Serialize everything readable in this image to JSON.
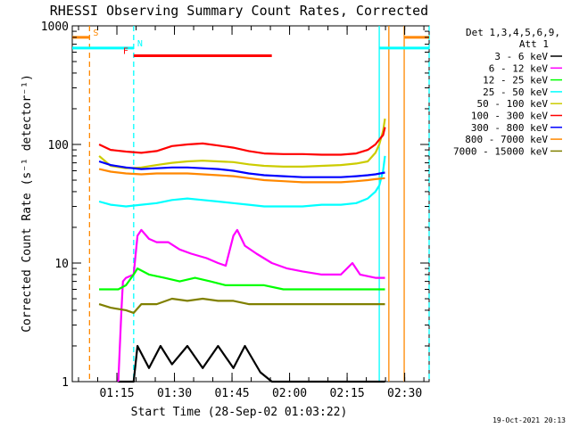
{
  "chart_data": {
    "type": "line",
    "title": "RHESSI Observing Summary Count Rates, Corrected",
    "xlabel": "Start Time (28-Sep-02 01:03:22)",
    "ylabel": "Corrected Count Rate (s⁻¹ detector⁻¹)",
    "yscale": "log",
    "ylim": [
      1,
      1000
    ],
    "xlim_minutes": [
      0,
      93
    ],
    "y_ticks": [
      {
        "value": 1,
        "label": "1"
      },
      {
        "value": 10,
        "label": "10"
      },
      {
        "value": 100,
        "label": "100"
      },
      {
        "value": 1000,
        "label": "1000"
      }
    ],
    "x_ticks": [
      {
        "minute": 11.63,
        "label": "01:15"
      },
      {
        "minute": 26.63,
        "label": "01:30"
      },
      {
        "minute": 41.63,
        "label": "01:45"
      },
      {
        "minute": 56.63,
        "label": "02:00"
      },
      {
        "minute": 71.63,
        "label": "02:15"
      },
      {
        "minute": 86.63,
        "label": "02:30"
      }
    ],
    "legend_header": [
      "Det 1,3,4,5,6,9,",
      "Att 1"
    ],
    "series": [
      {
        "name": "3 - 6 keV",
        "color": "#000000",
        "points": [
          [
            12,
            1
          ],
          [
            16,
            1
          ],
          [
            17,
            2
          ],
          [
            20,
            1.3
          ],
          [
            23,
            2
          ],
          [
            26,
            1.4
          ],
          [
            30,
            2
          ],
          [
            34,
            1.3
          ],
          [
            38,
            2
          ],
          [
            42,
            1.3
          ],
          [
            45,
            2
          ],
          [
            49,
            1.2
          ],
          [
            52,
            1
          ],
          [
            55,
            1
          ],
          [
            60,
            1
          ],
          [
            65,
            1
          ],
          [
            70,
            1
          ],
          [
            75,
            1
          ],
          [
            79,
            1
          ],
          [
            81.5,
            1
          ]
        ]
      },
      {
        "name": "6 - 12 keV",
        "color": "#ff00ff",
        "points": [
          [
            12,
            1
          ],
          [
            12.8,
            4
          ],
          [
            13.2,
            7
          ],
          [
            14,
            7.5
          ],
          [
            16,
            8
          ],
          [
            17,
            17
          ],
          [
            18,
            19
          ],
          [
            20,
            16
          ],
          [
            22,
            15
          ],
          [
            25,
            15
          ],
          [
            28,
            13
          ],
          [
            31,
            12
          ],
          [
            35,
            11
          ],
          [
            38,
            10
          ],
          [
            40,
            9.5
          ],
          [
            42,
            17
          ],
          [
            43,
            19
          ],
          [
            45,
            14
          ],
          [
            48,
            12
          ],
          [
            52,
            10
          ],
          [
            56,
            9
          ],
          [
            60,
            8.5
          ],
          [
            65,
            8
          ],
          [
            70,
            8
          ],
          [
            73,
            10
          ],
          [
            75,
            8
          ],
          [
            79,
            7.5
          ],
          [
            81.5,
            7.5
          ]
        ]
      },
      {
        "name": "12 - 25 keV",
        "color": "#00ff00",
        "points": [
          [
            7,
            6
          ],
          [
            12,
            6
          ],
          [
            14,
            6.5
          ],
          [
            16,
            8
          ],
          [
            17,
            9
          ],
          [
            20,
            8
          ],
          [
            24,
            7.5
          ],
          [
            28,
            7
          ],
          [
            32,
            7.5
          ],
          [
            36,
            7
          ],
          [
            40,
            6.5
          ],
          [
            45,
            6.5
          ],
          [
            50,
            6.5
          ],
          [
            55,
            6
          ],
          [
            60,
            6
          ],
          [
            65,
            6
          ],
          [
            70,
            6
          ],
          [
            75,
            6
          ],
          [
            79,
            6
          ],
          [
            81.5,
            6
          ]
        ]
      },
      {
        "name": "25 - 50 keV",
        "color": "#00ffff",
        "points": [
          [
            7,
            33
          ],
          [
            10,
            31
          ],
          [
            14,
            30
          ],
          [
            18,
            31
          ],
          [
            22,
            32
          ],
          [
            26,
            34
          ],
          [
            30,
            35
          ],
          [
            34,
            34
          ],
          [
            38,
            33
          ],
          [
            42,
            32
          ],
          [
            46,
            31
          ],
          [
            50,
            30
          ],
          [
            55,
            30
          ],
          [
            60,
            30
          ],
          [
            65,
            31
          ],
          [
            70,
            31
          ],
          [
            74,
            32
          ],
          [
            77,
            35
          ],
          [
            79,
            40
          ],
          [
            80,
            45
          ],
          [
            81,
            60
          ],
          [
            81.5,
            80
          ]
        ]
      },
      {
        "name": "50 - 100 keV",
        "color": "#cccc00",
        "points": [
          [
            7,
            80
          ],
          [
            10,
            66
          ],
          [
            14,
            63
          ],
          [
            18,
            64
          ],
          [
            22,
            67
          ],
          [
            26,
            70
          ],
          [
            30,
            72
          ],
          [
            34,
            73
          ],
          [
            38,
            72
          ],
          [
            42,
            71
          ],
          [
            46,
            68
          ],
          [
            50,
            66
          ],
          [
            55,
            65
          ],
          [
            60,
            65
          ],
          [
            65,
            66
          ],
          [
            70,
            67
          ],
          [
            74,
            69
          ],
          [
            77,
            72
          ],
          [
            79,
            85
          ],
          [
            80,
            100
          ],
          [
            81,
            130
          ],
          [
            81.5,
            165
          ]
        ]
      },
      {
        "name": "100 - 300 keV",
        "color": "#ff0000",
        "points": [
          [
            7,
            100
          ],
          [
            10,
            90
          ],
          [
            14,
            87
          ],
          [
            18,
            85
          ],
          [
            22,
            88
          ],
          [
            26,
            97
          ],
          [
            30,
            100
          ],
          [
            34,
            102
          ],
          [
            38,
            98
          ],
          [
            42,
            94
          ],
          [
            46,
            88
          ],
          [
            50,
            84
          ],
          [
            55,
            83
          ],
          [
            60,
            83
          ],
          [
            65,
            82
          ],
          [
            70,
            82
          ],
          [
            74,
            84
          ],
          [
            77,
            90
          ],
          [
            79,
            100
          ],
          [
            80,
            110
          ],
          [
            81,
            120
          ],
          [
            81.5,
            140
          ]
        ]
      },
      {
        "name": "300 - 800 keV",
        "color": "#0000ff",
        "points": [
          [
            7,
            72
          ],
          [
            10,
            67
          ],
          [
            14,
            64
          ],
          [
            18,
            62
          ],
          [
            22,
            63
          ],
          [
            26,
            64
          ],
          [
            30,
            64
          ],
          [
            34,
            63
          ],
          [
            38,
            62
          ],
          [
            42,
            60
          ],
          [
            46,
            57
          ],
          [
            50,
            55
          ],
          [
            55,
            54
          ],
          [
            60,
            53
          ],
          [
            65,
            53
          ],
          [
            70,
            53
          ],
          [
            74,
            54
          ],
          [
            77,
            55
          ],
          [
            79,
            56
          ],
          [
            81.5,
            58
          ]
        ]
      },
      {
        "name": "800 - 7000 keV",
        "color": "#ff8800",
        "points": [
          [
            7,
            62
          ],
          [
            10,
            59
          ],
          [
            14,
            57
          ],
          [
            18,
            56
          ],
          [
            22,
            57
          ],
          [
            26,
            57
          ],
          [
            30,
            57
          ],
          [
            34,
            56
          ],
          [
            38,
            55
          ],
          [
            42,
            54
          ],
          [
            46,
            52
          ],
          [
            50,
            50
          ],
          [
            55,
            49
          ],
          [
            60,
            48
          ],
          [
            65,
            48
          ],
          [
            70,
            48
          ],
          [
            74,
            49
          ],
          [
            77,
            50
          ],
          [
            79,
            51
          ],
          [
            81.5,
            52
          ]
        ]
      },
      {
        "name": "7000 - 15000 keV",
        "color": "#808000",
        "points": [
          [
            7,
            4.5
          ],
          [
            10,
            4.2
          ],
          [
            14,
            4
          ],
          [
            16,
            3.8
          ],
          [
            18,
            4.5
          ],
          [
            22,
            4.5
          ],
          [
            26,
            5
          ],
          [
            30,
            4.8
          ],
          [
            34,
            5
          ],
          [
            38,
            4.8
          ],
          [
            42,
            4.8
          ],
          [
            46,
            4.5
          ],
          [
            50,
            4.5
          ],
          [
            55,
            4.5
          ],
          [
            60,
            4.5
          ],
          [
            65,
            4.5
          ],
          [
            70,
            4.5
          ],
          [
            74,
            4.5
          ],
          [
            79,
            4.5
          ],
          [
            81.5,
            4.5
          ]
        ]
      }
    ],
    "flags": [
      {
        "label": "S",
        "color": "#ff8800",
        "segments": [
          [
            0,
            4.5
          ],
          [
            86.5,
            93
          ]
        ],
        "level": 800
      },
      {
        "label": "N",
        "color": "#00ffff",
        "segments": [
          [
            0,
            16
          ],
          [
            80,
            93
          ]
        ],
        "level": 650
      },
      {
        "label": "F",
        "color": "#ff0000",
        "segments": [
          [
            16,
            52
          ]
        ],
        "level": 560
      }
    ],
    "vertical_lines": [
      {
        "minute": 4.5,
        "color": "#ff8800",
        "dashed": true
      },
      {
        "minute": 16,
        "color": "#00ffff",
        "dashed": true
      },
      {
        "minute": 80,
        "color": "#00ffff",
        "dashed": false
      },
      {
        "minute": 82.5,
        "color": "#ff8800",
        "dashed": false
      },
      {
        "minute": 86.5,
        "color": "#ff8800",
        "dashed": false
      },
      {
        "minute": 93,
        "color": "#00ffff",
        "dashed": true
      }
    ]
  },
  "footer": {
    "timestamp": "19-Oct-2021 20:13"
  },
  "colors": {
    "background": "#ffffff",
    "axis": "#000000"
  }
}
